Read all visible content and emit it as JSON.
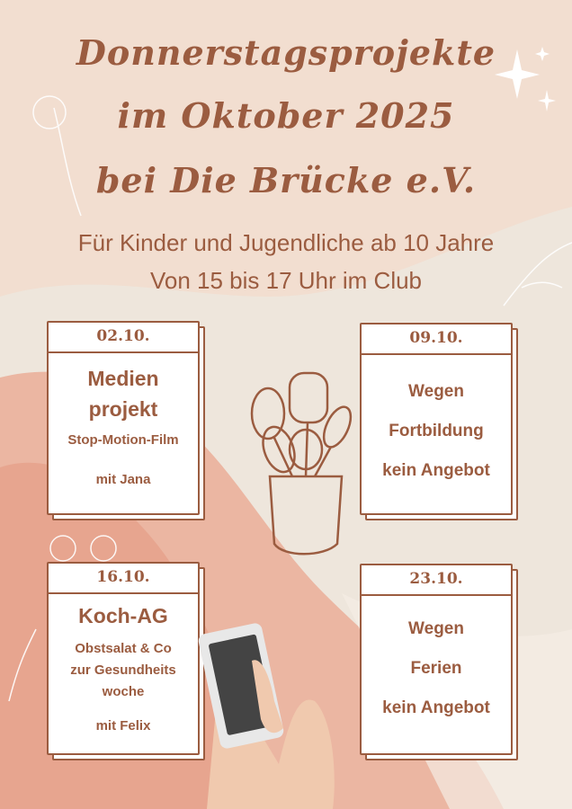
{
  "title": {
    "line1": "Donnerstagsprojekte",
    "line2": "im Oktober 2025",
    "line3": "bei Die Brücke e.V."
  },
  "subtitle": {
    "line1": "Für Kinder und Jugendliche ab 10 Jahre",
    "line2": "Von 15 bis 17 Uhr im Club"
  },
  "colors": {
    "text": "#9b5c40",
    "background": "#eee6dc",
    "accent": "#e8a28c"
  },
  "cards": [
    {
      "date": "02.10.",
      "title_lines": [
        "Medien",
        "projekt"
      ],
      "details": [
        "Stop-Motion-Film"
      ],
      "host": "mit Jana"
    },
    {
      "date": "09.10.",
      "lines": [
        "Wegen",
        "Fortbildung",
        "kein Angebot"
      ]
    },
    {
      "date": "16.10.",
      "title_lines": [
        "Koch-AG"
      ],
      "details": [
        "Obstsalat & Co",
        "zur Gesundheits",
        "woche"
      ],
      "host": "mit Felix"
    },
    {
      "date": "23.10.",
      "lines": [
        "Wegen",
        "Ferien",
        "kein Angebot"
      ]
    }
  ],
  "icons": [
    "kitchen-utensils-icon",
    "phone-in-hand-icon",
    "sparkle-icon",
    "flower-icon"
  ]
}
